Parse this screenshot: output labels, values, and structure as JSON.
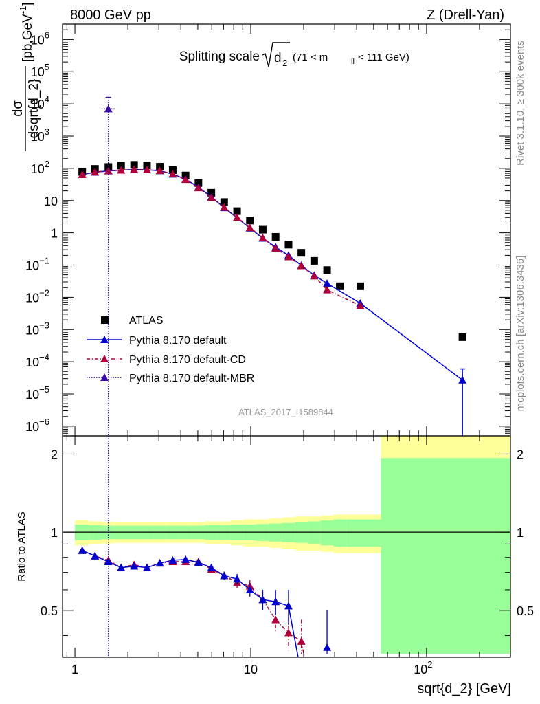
{
  "header": {
    "energy": "8000 GeV pp",
    "process": "Z (Drell-Yan)",
    "title_main": "Splitting scale",
    "title_sqrt_var": "d",
    "title_sqrt_sub": "2",
    "title_range_a": "(71 < m",
    "title_range_sub": "ll",
    "title_range_b": " < 111 GeV)",
    "side_top": "Rivet 3.1.10, ≥ 300k events",
    "side_bottom": "mcplots.cern.ch [arXiv:1306.3436]",
    "analysis": "ATLAS_2017_I1589844"
  },
  "axes": {
    "ylabel_num": "dσ",
    "ylabel_den": "dsqrt{d_2}",
    "ylabel_unit": "[pb,GeV",
    "ylabel_unit_sup": "-1",
    "ylabel_unit_end": "]",
    "ratio_ylabel": "Ratio to ATLAS",
    "xlabel": "sqrt{d_2} [GeV]"
  },
  "legend": [
    {
      "label": "ATLAS"
    },
    {
      "label": "Pythia 8.170 default"
    },
    {
      "label": "Pythia 8.170 default-CD"
    },
    {
      "label": "Pythia 8.170 default-MBR"
    }
  ],
  "colors": {
    "data": "#000000",
    "default": "#0000cc",
    "cd": "#b0003a",
    "mbr": "#3a0aa8",
    "band_inner": "#99ff99",
    "band_outer": "#ffff99"
  },
  "chart_data": {
    "type": "scatter",
    "x_scale": "log",
    "xlim": [
      0.85,
      300
    ],
    "ylim": [
      5e-07,
      3000000.0
    ],
    "ratio_ylim": [
      0.33,
      2.35
    ],
    "x_ticks": [
      {
        "v": 1,
        "label": "1"
      },
      {
        "v": 10,
        "label": "10"
      },
      {
        "v": 100,
        "label": "10",
        "sup": "2"
      }
    ],
    "y_ticks": [
      {
        "v": 1000000.0,
        "label": "10",
        "sup": "6"
      },
      {
        "v": 100000.0,
        "label": "10",
        "sup": "5"
      },
      {
        "v": 10000.0,
        "label": "10",
        "sup": "4"
      },
      {
        "v": 1000.0,
        "label": "10",
        "sup": "3"
      },
      {
        "v": 100.0,
        "label": "10",
        "sup": "2"
      },
      {
        "v": 10,
        "label": "10"
      },
      {
        "v": 1,
        "label": "1"
      },
      {
        "v": 0.1,
        "label": "10",
        "sup": "−1"
      },
      {
        "v": 0.01,
        "label": "10",
        "sup": "−2"
      },
      {
        "v": 0.001,
        "label": "10",
        "sup": "−3"
      },
      {
        "v": 0.0001,
        "label": "10",
        "sup": "−4"
      },
      {
        "v": 1e-05,
        "label": "10",
        "sup": "−5"
      },
      {
        "v": 1e-06,
        "label": "10",
        "sup": "−6"
      }
    ],
    "ratio_ticks": [
      {
        "v": 0.5,
        "label": "0.5"
      },
      {
        "v": 1,
        "label": "1"
      },
      {
        "v": 2,
        "label": "2"
      }
    ],
    "atlas": {
      "x": [
        1.1,
        1.3,
        1.55,
        1.83,
        2.17,
        2.57,
        3.04,
        3.6,
        4.26,
        5.04,
        5.97,
        7.06,
        8.36,
        9.89,
        11.7,
        13.85,
        16.4,
        19.4,
        22.96,
        27.17,
        32.1,
        42.0,
        160.0
      ],
      "y": [
        78,
        96,
        110,
        122,
        128,
        124,
        112,
        88,
        60,
        35,
        17.5,
        9.0,
        4.7,
        2.4,
        1.25,
        0.75,
        0.43,
        0.24,
        0.135,
        0.07,
        0.022,
        0.022,
        0.00058
      ],
      "band_edges": [
        1.0,
        1.2,
        1.42,
        1.68,
        1.99,
        2.36,
        2.79,
        3.3,
        3.91,
        4.63,
        5.48,
        6.49,
        7.68,
        9.09,
        10.76,
        12.74,
        15.08,
        17.85,
        21.13,
        25.0,
        29.6,
        35.0,
        55.0,
        300.0
      ],
      "band_inner": [
        0.07,
        0.065,
        0.06,
        0.06,
        0.06,
        0.06,
        0.06,
        0.06,
        0.06,
        0.06,
        0.065,
        0.065,
        0.07,
        0.07,
        0.075,
        0.08,
        0.085,
        0.09,
        0.1,
        0.11,
        0.12,
        0.12,
        0.93
      ],
      "band_outer": [
        0.11,
        0.1,
        0.095,
        0.09,
        0.09,
        0.09,
        0.09,
        0.09,
        0.09,
        0.09,
        0.1,
        0.1,
        0.11,
        0.12,
        0.12,
        0.13,
        0.14,
        0.15,
        0.15,
        0.16,
        0.17,
        0.17,
        1.4
      ]
    },
    "series": [
      {
        "name": "Pythia 8.170 default",
        "x": [
          1.1,
          1.3,
          1.55,
          1.83,
          2.17,
          2.57,
          3.04,
          3.6,
          4.26,
          5.04,
          5.97,
          7.06,
          8.36,
          9.89,
          11.7,
          13.85,
          16.4,
          19.4,
          22.96,
          27.17,
          42.0,
          160.0
        ],
        "y": [
          64,
          76,
          83,
          88,
          92,
          90,
          84,
          66,
          46,
          26,
          13,
          6.0,
          2.9,
          1.4,
          0.68,
          0.36,
          0.2,
          0.098,
          0.048,
          0.027,
          0.0065,
          2.7e-05
        ],
        "ratio": [
          0.85,
          0.81,
          0.77,
          0.73,
          0.74,
          0.73,
          0.76,
          0.78,
          0.785,
          0.765,
          0.73,
          0.68,
          0.66,
          0.6,
          0.55,
          0.54,
          0.52,
          null,
          null,
          0.36,
          null,
          null
        ],
        "ratio_err": [
          0.01,
          0.01,
          0.01,
          0.01,
          0.01,
          0.01,
          0.01,
          0.01,
          0.01,
          0.015,
          0.02,
          0.025,
          0.03,
          0.035,
          0.05,
          0.06,
          0.08,
          null,
          null,
          0.14,
          null,
          null
        ]
      },
      {
        "name": "Pythia 8.170 default-CD",
        "x": [
          1.1,
          1.3,
          1.55,
          1.83,
          2.17,
          2.57,
          3.04,
          3.6,
          4.26,
          5.04,
          5.97,
          7.06,
          8.36,
          9.89,
          11.7,
          13.85,
          16.4,
          19.4,
          22.96,
          27.17,
          42.0
        ],
        "y": [
          64,
          77,
          84,
          88,
          93,
          90,
          85,
          67,
          45,
          25,
          12.5,
          6.2,
          3.0,
          1.45,
          0.7,
          0.33,
          0.18,
          0.095,
          0.046,
          0.017,
          0.0055
        ],
        "ratio": [
          0.85,
          0.81,
          0.78,
          0.73,
          0.75,
          0.73,
          0.76,
          0.77,
          0.77,
          0.77,
          0.72,
          0.68,
          0.64,
          0.62,
          0.55,
          0.46,
          0.41,
          0.38,
          null,
          null,
          null
        ],
        "ratio_err": [
          0.01,
          0.01,
          0.01,
          0.01,
          0.01,
          0.01,
          0.01,
          0.01,
          0.01,
          0.015,
          0.02,
          0.025,
          0.03,
          0.035,
          0.04,
          0.05,
          0.06,
          0.08,
          null,
          null,
          null
        ]
      },
      {
        "name": "Pythia 8.170 default-MBR",
        "x": [
          1.55
        ],
        "y": [
          7000
        ],
        "y_err_hi": [
          16000
        ],
        "y_err_lo": [
          5e-07
        ]
      }
    ]
  }
}
